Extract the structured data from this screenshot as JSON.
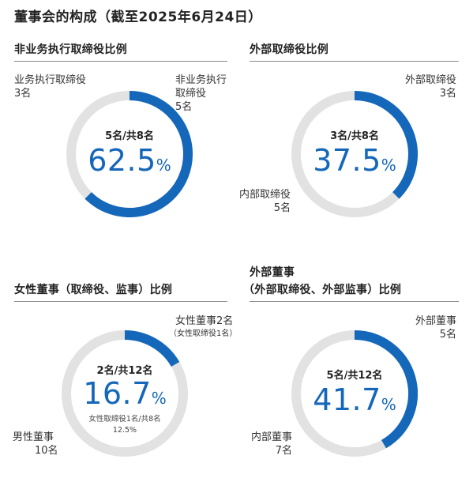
{
  "title": "董事会的构成（截至2025年6月24日）",
  "colors": {
    "accent": "#1567b9",
    "track": "#e2e2e2"
  },
  "chart_data": [
    {
      "type": "pie",
      "title": "非业务执行取缔役比例",
      "center_count": "5名/共8名",
      "center_pct": "62.5",
      "center_unit": "%",
      "slices": [
        {
          "label": "非业务执行取缔役",
          "count_label": "5名",
          "value": 5
        },
        {
          "label": "业务执行取缔役",
          "count_label": "3名",
          "value": 3
        }
      ],
      "total": 8
    },
    {
      "type": "pie",
      "title": "外部取缔役比例",
      "center_count": "3名/共8名",
      "center_pct": "37.5",
      "center_unit": "%",
      "slices": [
        {
          "label": "外部取缔役",
          "count_label": "3名",
          "value": 3
        },
        {
          "label": "内部取缔役",
          "count_label": "5名",
          "value": 5
        }
      ],
      "total": 8
    },
    {
      "type": "pie",
      "title": "女性董事（取缔役、监事）比例",
      "center_count": "2名/共12名",
      "center_pct": "16.7",
      "center_unit": "%",
      "note_line1": "女性取缔役1名/共8名",
      "note_line2": "12.5%",
      "slices": [
        {
          "label": "女性董事2名",
          "sub_label": "（女性取缔役1名）",
          "value": 2
        },
        {
          "label": "男性董事",
          "count_label": "10名",
          "value": 10
        }
      ],
      "total": 12
    },
    {
      "type": "pie",
      "title_line1": "外部董事",
      "title_line2": "（外部取缔役、外部监事）比例",
      "center_count": "5名/共12名",
      "center_pct": "41.7",
      "center_unit": "%",
      "slices": [
        {
          "label": "外部董事",
          "count_label": "5名",
          "value": 5
        },
        {
          "label": "内部董事",
          "count_label": "7名",
          "value": 7
        }
      ],
      "total": 12
    }
  ]
}
